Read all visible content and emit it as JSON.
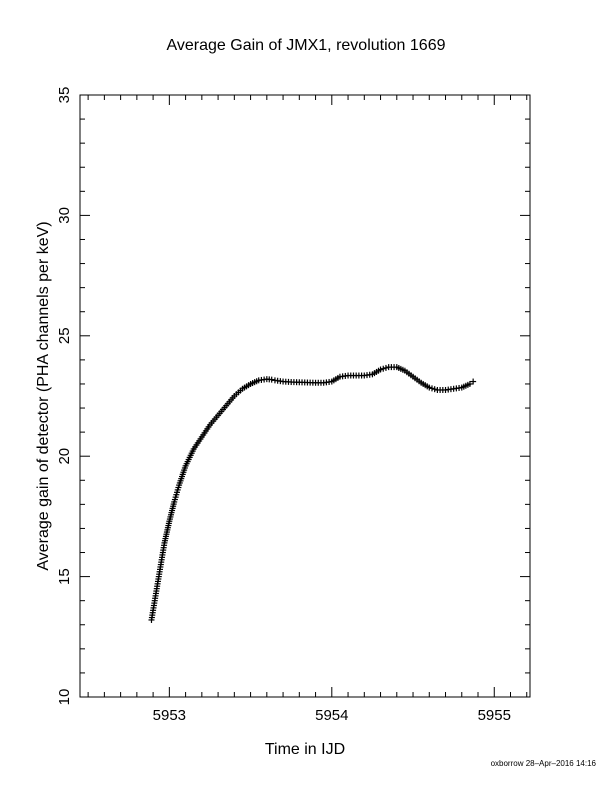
{
  "chart_data": {
    "type": "scatter",
    "title": "Average Gain of JMX1, revolution 1669",
    "xlabel": "Time in IJD",
    "ylabel": "Average gain of detector (PHA channels per keV)",
    "xlim": [
      5952.45,
      5955.22
    ],
    "ylim": [
      10,
      35
    ],
    "x_ticks": [
      5953,
      5954,
      5955
    ],
    "x_tick_labels": [
      "5953",
      "5954",
      "5955"
    ],
    "y_ticks": [
      10,
      15,
      20,
      25,
      30,
      35
    ],
    "y_tick_labels": [
      "10",
      "15",
      "20",
      "25",
      "30",
      "35"
    ],
    "x_minor_step": 0.1,
    "y_minor_step": 1,
    "grid": false,
    "marker": "+",
    "series": [
      {
        "x": [
          5952.89,
          5952.91,
          5952.93,
          5952.95,
          5952.97,
          5953.0,
          5953.03,
          5953.06,
          5953.1,
          5953.15,
          5953.2,
          5953.25,
          5953.3,
          5953.35,
          5953.4,
          5953.45,
          5953.5,
          5953.55,
          5953.6,
          5953.63,
          5953.65,
          5953.7,
          5953.75,
          5953.8,
          5953.85,
          5953.9,
          5953.95,
          5954.0,
          5954.05,
          5954.1,
          5954.15,
          5954.2,
          5954.25,
          5954.3,
          5954.35,
          5954.4,
          5954.45,
          5954.5,
          5954.55,
          5954.6,
          5954.65,
          5954.7,
          5954.75,
          5954.8,
          5954.85,
          5954.87
        ],
        "y": [
          13.2,
          14.0,
          14.8,
          15.6,
          16.4,
          17.3,
          18.1,
          18.8,
          19.6,
          20.3,
          20.8,
          21.3,
          21.7,
          22.1,
          22.5,
          22.8,
          23.0,
          23.15,
          23.2,
          23.18,
          23.15,
          23.1,
          23.08,
          23.07,
          23.06,
          23.05,
          23.05,
          23.1,
          23.3,
          23.35,
          23.35,
          23.35,
          23.4,
          23.6,
          23.7,
          23.7,
          23.55,
          23.3,
          23.05,
          22.85,
          22.75,
          22.75,
          22.8,
          22.85,
          23.0,
          23.1
        ]
      }
    ]
  },
  "footer": "oxborrow 28–Apr–2016 14:16"
}
